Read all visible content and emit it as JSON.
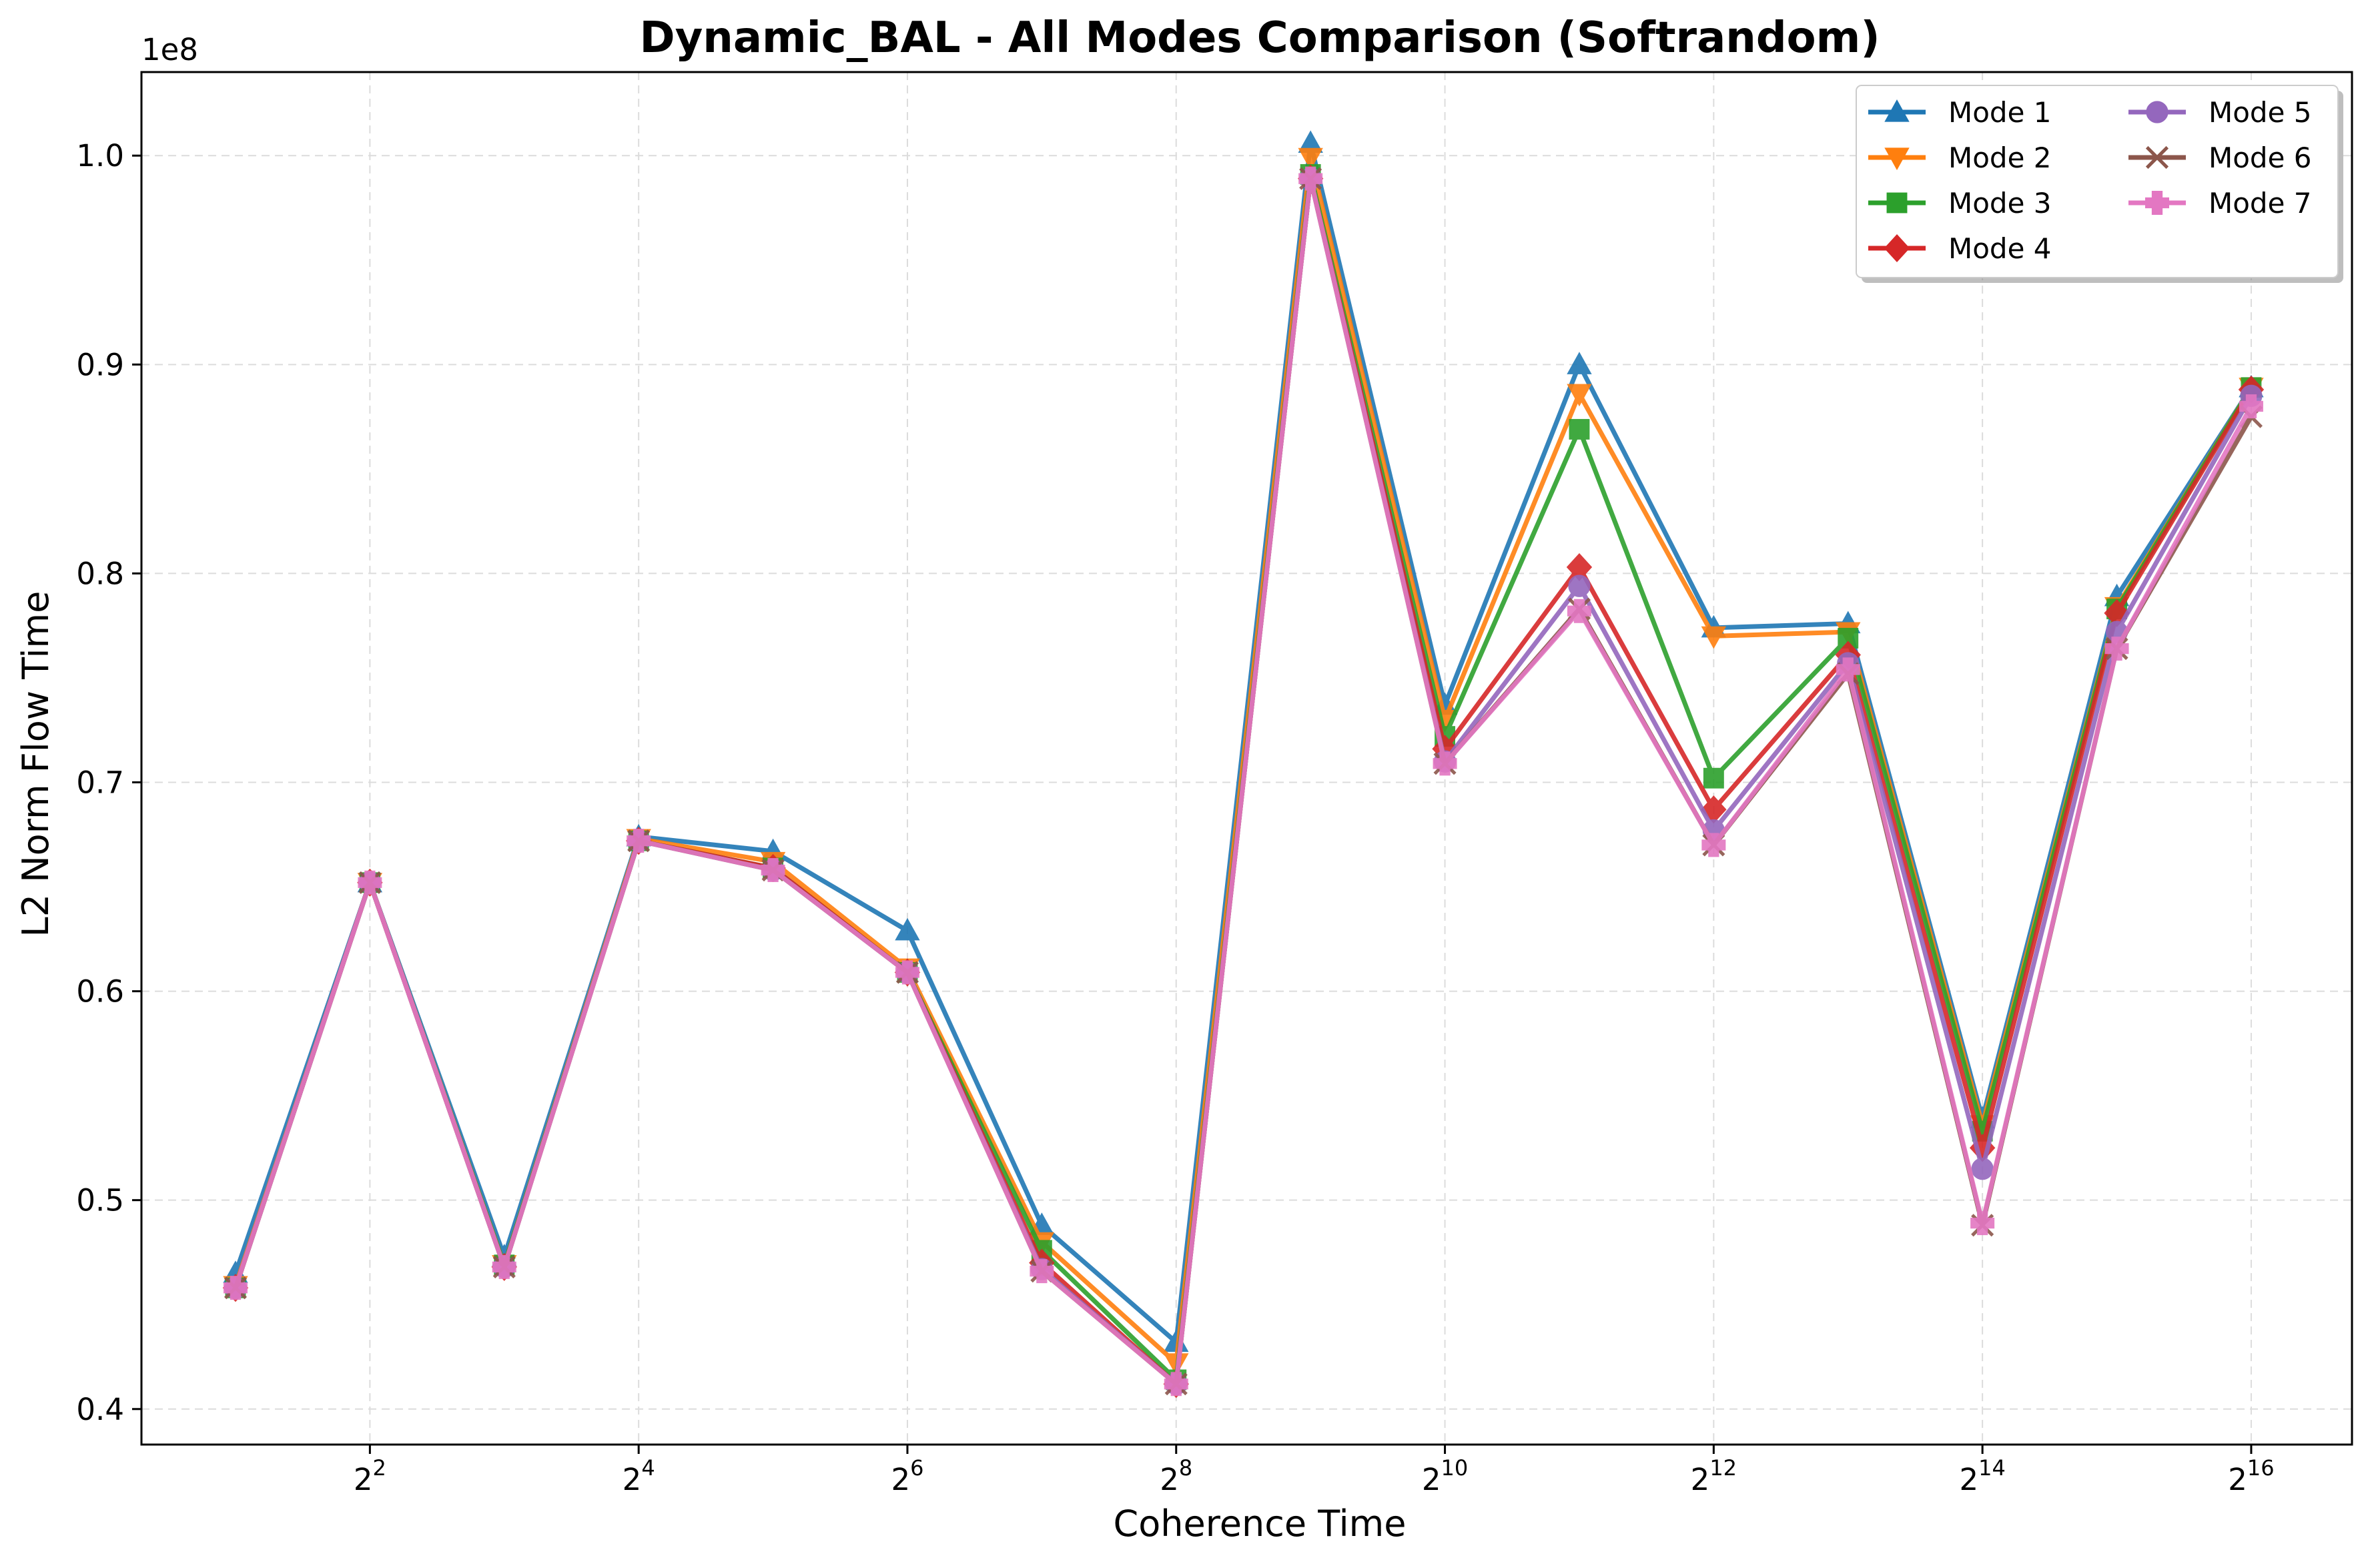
{
  "chart_data": {
    "type": "line",
    "title": "Dynamic_BAL - All Modes Comparison (Softrandom)",
    "xlabel": "Coherence Time",
    "ylabel": "L2 Norm Flow Time",
    "y_offset_text": "1e8",
    "x_scale": "log2",
    "x_exponents": [
      1,
      2,
      3,
      4,
      5,
      6,
      7,
      8,
      9,
      10,
      11,
      12,
      13,
      14,
      15,
      16
    ],
    "x_tick_exponents": [
      2,
      4,
      6,
      8,
      10,
      12,
      14,
      16
    ],
    "x_tick_base": "2",
    "xlim_exp": [
      0.3,
      16.75
    ],
    "ylim": [
      0.383,
      1.04
    ],
    "y_ticks": [
      0.4,
      0.5,
      0.6,
      0.7,
      0.8,
      0.9,
      1.0
    ],
    "y_tick_labels": [
      "0.4",
      "0.5",
      "0.6",
      "0.7",
      "0.8",
      "0.9",
      "1.0"
    ],
    "grid": true,
    "legend_position": "top-right",
    "legend_columns": 2,
    "series": [
      {
        "name": "Mode 1",
        "color": "#1f77b4",
        "marker": "triangle-up",
        "values": [
          0.465,
          0.652,
          0.473,
          0.674,
          0.667,
          0.629,
          0.488,
          0.432,
          1.006,
          0.737,
          0.9,
          0.774,
          0.776,
          0.539,
          0.789,
          0.889
        ]
      },
      {
        "name": "Mode 2",
        "color": "#ff7f0e",
        "marker": "triangle-down",
        "values": [
          0.459,
          0.652,
          0.469,
          0.673,
          0.662,
          0.611,
          0.48,
          0.422,
          0.999,
          0.73,
          0.886,
          0.77,
          0.772,
          0.536,
          0.784,
          0.889
        ]
      },
      {
        "name": "Mode 3",
        "color": "#2ca02c",
        "marker": "square",
        "values": [
          0.458,
          0.652,
          0.469,
          0.672,
          0.659,
          0.609,
          0.476,
          0.414,
          0.991,
          0.722,
          0.869,
          0.702,
          0.769,
          0.533,
          0.783,
          0.889
        ]
      },
      {
        "name": "Mode 4",
        "color": "#d62728",
        "marker": "diamond",
        "values": [
          0.458,
          0.652,
          0.468,
          0.672,
          0.659,
          0.609,
          0.47,
          0.412,
          0.989,
          0.716,
          0.803,
          0.687,
          0.761,
          0.525,
          0.781,
          0.888
        ]
      },
      {
        "name": "Mode 5",
        "color": "#9467bd",
        "marker": "circle",
        "values": [
          0.458,
          0.652,
          0.468,
          0.672,
          0.658,
          0.609,
          0.467,
          0.412,
          0.989,
          0.71,
          0.794,
          0.677,
          0.757,
          0.515,
          0.772,
          0.885
        ]
      },
      {
        "name": "Mode 6",
        "color": "#8c564b",
        "marker": "x",
        "values": [
          0.458,
          0.652,
          0.468,
          0.672,
          0.658,
          0.609,
          0.466,
          0.412,
          0.989,
          0.709,
          0.783,
          0.67,
          0.752,
          0.488,
          0.764,
          0.875
        ]
      },
      {
        "name": "Mode 7",
        "color": "#e377c2",
        "marker": "plus-filled",
        "values": [
          0.458,
          0.652,
          0.468,
          0.672,
          0.658,
          0.609,
          0.466,
          0.412,
          0.989,
          0.709,
          0.782,
          0.67,
          0.754,
          0.489,
          0.764,
          0.88
        ]
      }
    ]
  }
}
